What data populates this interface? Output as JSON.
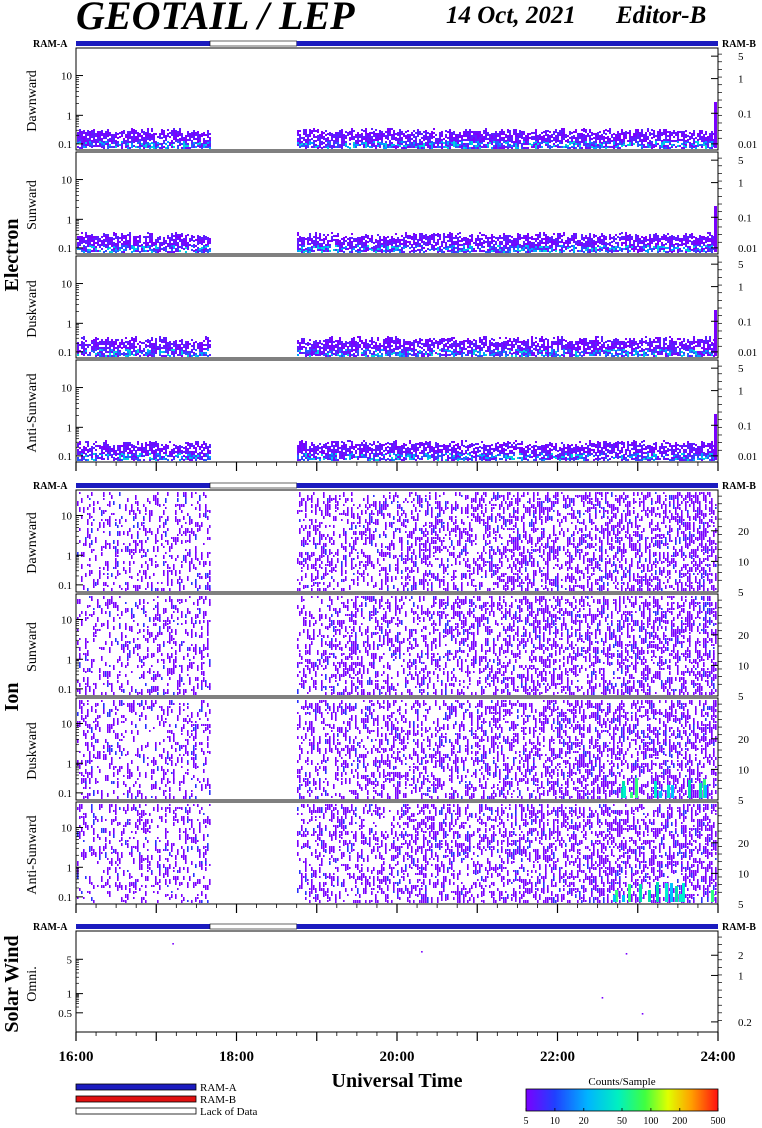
{
  "header": {
    "title": "GEOTAIL / LEP",
    "date": "14 Oct, 2021",
    "editor": "Editor-B"
  },
  "ram_labels": {
    "left": "RAM-A",
    "right": "RAM-B"
  },
  "groups": [
    {
      "id": "electron",
      "label": "Electron"
    },
    {
      "id": "ion",
      "label": "Ion"
    },
    {
      "id": "solar",
      "label": "Solar Wind"
    }
  ],
  "x_axis": {
    "label": "Universal Time",
    "ticks": [
      "16:00",
      "18:00",
      "20:00",
      "22:00",
      "24:00"
    ]
  },
  "legend": {
    "items": [
      {
        "label": "RAM-A",
        "color": "#1b1bbf"
      },
      {
        "label": "RAM-B",
        "color": "#e01010"
      },
      {
        "label": "Lack of Data",
        "color": "#ffffff"
      }
    ]
  },
  "colorbar": {
    "title": "Counts/Sample",
    "ticks": [
      "5",
      "10",
      "20",
      "50",
      "100",
      "200",
      "500"
    ]
  },
  "chart_data": [
    {
      "type": "heatmap",
      "group": "Electron",
      "ylabel": "Dawnward",
      "x_range_hours": [
        16,
        24
      ],
      "data_gap_hours": [
        17.67,
        18.75
      ],
      "left_axis_ticks": [
        "10",
        "1",
        "0.1"
      ],
      "right_axis_ticks": [
        "5",
        "1",
        "0.1",
        "0.01"
      ]
    },
    {
      "type": "heatmap",
      "group": "Electron",
      "ylabel": "Sunward",
      "x_range_hours": [
        16,
        24
      ],
      "data_gap_hours": [
        17.67,
        18.75
      ],
      "left_axis_ticks": [
        "10",
        "1",
        "0.1"
      ],
      "right_axis_ticks": [
        "5",
        "1",
        "0.1",
        "0.01"
      ]
    },
    {
      "type": "heatmap",
      "group": "Electron",
      "ylabel": "Duskward",
      "x_range_hours": [
        16,
        24
      ],
      "data_gap_hours": [
        17.67,
        18.75
      ],
      "left_axis_ticks": [
        "10",
        "1",
        "0.1"
      ],
      "right_axis_ticks": [
        "5",
        "1",
        "0.1",
        "0.01"
      ]
    },
    {
      "type": "heatmap",
      "group": "Electron",
      "ylabel": "Anti-Sunward",
      "x_range_hours": [
        16,
        24
      ],
      "data_gap_hours": [
        17.67,
        18.75
      ],
      "left_axis_ticks": [
        "10",
        "1",
        "0.1"
      ],
      "right_axis_ticks": [
        "5",
        "1",
        "0.1",
        "0.01"
      ]
    },
    {
      "type": "heatmap",
      "group": "Ion",
      "ylabel": "Dawnward",
      "x_range_hours": [
        16,
        24
      ],
      "data_gap_hours": [
        17.67,
        18.75
      ],
      "left_axis_ticks": [
        "10",
        "1",
        "0.1"
      ],
      "right_axis_ticks": [
        "20",
        "10",
        "5"
      ]
    },
    {
      "type": "heatmap",
      "group": "Ion",
      "ylabel": "Sunward",
      "x_range_hours": [
        16,
        24
      ],
      "data_gap_hours": [
        17.67,
        18.75
      ],
      "left_axis_ticks": [
        "10",
        "1",
        "0.1"
      ],
      "right_axis_ticks": [
        "20",
        "10",
        "5"
      ]
    },
    {
      "type": "heatmap",
      "group": "Ion",
      "ylabel": "Duskward",
      "x_range_hours": [
        16,
        24
      ],
      "data_gap_hours": [
        17.67,
        18.75
      ],
      "left_axis_ticks": [
        "10",
        "1",
        "0.1"
      ],
      "right_axis_ticks": [
        "20",
        "10",
        "5"
      ]
    },
    {
      "type": "heatmap",
      "group": "Ion",
      "ylabel": "Anti-Sunward",
      "x_range_hours": [
        16,
        24
      ],
      "data_gap_hours": [
        17.67,
        18.75
      ],
      "left_axis_ticks": [
        "10",
        "1",
        "0.1"
      ],
      "right_axis_ticks": [
        "20",
        "10",
        "5"
      ]
    },
    {
      "type": "scatter",
      "group": "Solar Wind",
      "ylabel": "Omni.",
      "x_range_hours": [
        16,
        24
      ],
      "left_axis_ticks": [
        "5",
        "1",
        "0.5"
      ],
      "right_axis_ticks": [
        "2",
        "1",
        "0.2"
      ]
    }
  ]
}
